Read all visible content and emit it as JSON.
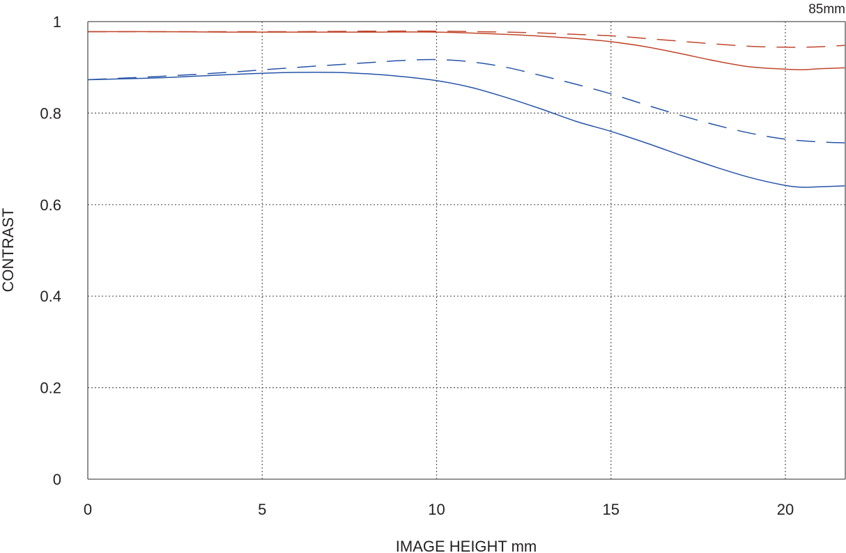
{
  "chart_data": {
    "type": "line",
    "title": "85mm",
    "xlabel": "IMAGE HEIGHT  mm",
    "ylabel": "CONTRAST",
    "xlim": [
      0,
      21.7
    ],
    "ylim": [
      0,
      1
    ],
    "x_ticks": [
      "0",
      "5",
      "10",
      "15",
      "20"
    ],
    "y_ticks": [
      "0",
      "0.2",
      "0.4",
      "0.6",
      "0.8",
      "1"
    ],
    "grid": true,
    "legend": "none",
    "series": [
      {
        "color": "#c0452b",
        "style": "solid",
        "points": [
          [
            0,
            0.978
          ],
          [
            2,
            0.978
          ],
          [
            4,
            0.977
          ],
          [
            6,
            0.977
          ],
          [
            8,
            0.977
          ],
          [
            10,
            0.977
          ],
          [
            12,
            0.972
          ],
          [
            13,
            0.968
          ],
          [
            14,
            0.963
          ],
          [
            15,
            0.956
          ],
          [
            16,
            0.945
          ],
          [
            17,
            0.93
          ],
          [
            18,
            0.914
          ],
          [
            19,
            0.901
          ],
          [
            20,
            0.896
          ],
          [
            20.5,
            0.895
          ],
          [
            21,
            0.897
          ],
          [
            21.7,
            0.899
          ]
        ]
      },
      {
        "color": "#c0452b",
        "style": "dashed",
        "points": [
          [
            0,
            0.978
          ],
          [
            2,
            0.978
          ],
          [
            4,
            0.978
          ],
          [
            6,
            0.978
          ],
          [
            8,
            0.979
          ],
          [
            10,
            0.979
          ],
          [
            12,
            0.977
          ],
          [
            13,
            0.975
          ],
          [
            14,
            0.972
          ],
          [
            15,
            0.969
          ],
          [
            16,
            0.963
          ],
          [
            17,
            0.957
          ],
          [
            18,
            0.951
          ],
          [
            19,
            0.946
          ],
          [
            20,
            0.944
          ],
          [
            20.5,
            0.944
          ],
          [
            21,
            0.945
          ],
          [
            21.7,
            0.948
          ]
        ]
      },
      {
        "color": "#2553a8",
        "style": "solid",
        "points": [
          [
            0,
            0.873
          ],
          [
            2,
            0.877
          ],
          [
            4,
            0.884
          ],
          [
            5,
            0.887
          ],
          [
            6,
            0.889
          ],
          [
            7,
            0.889
          ],
          [
            8,
            0.886
          ],
          [
            9,
            0.88
          ],
          [
            10,
            0.871
          ],
          [
            11,
            0.856
          ],
          [
            12,
            0.834
          ],
          [
            13,
            0.809
          ],
          [
            14,
            0.782
          ],
          [
            15,
            0.76
          ],
          [
            16,
            0.735
          ],
          [
            17,
            0.708
          ],
          [
            18,
            0.682
          ],
          [
            19,
            0.659
          ],
          [
            20,
            0.642
          ],
          [
            20.5,
            0.638
          ],
          [
            21,
            0.639
          ],
          [
            21.7,
            0.641
          ]
        ]
      },
      {
        "color": "#2553a8",
        "style": "dashed",
        "points": [
          [
            0,
            0.873
          ],
          [
            2,
            0.88
          ],
          [
            4,
            0.889
          ],
          [
            6,
            0.9
          ],
          [
            8,
            0.91
          ],
          [
            9,
            0.915
          ],
          [
            10,
            0.917
          ],
          [
            11,
            0.912
          ],
          [
            12,
            0.9
          ],
          [
            13,
            0.882
          ],
          [
            14,
            0.863
          ],
          [
            15,
            0.842
          ],
          [
            16,
            0.818
          ],
          [
            17,
            0.795
          ],
          [
            18,
            0.774
          ],
          [
            19,
            0.756
          ],
          [
            20,
            0.743
          ],
          [
            21,
            0.737
          ],
          [
            21.7,
            0.735
          ]
        ]
      }
    ]
  }
}
